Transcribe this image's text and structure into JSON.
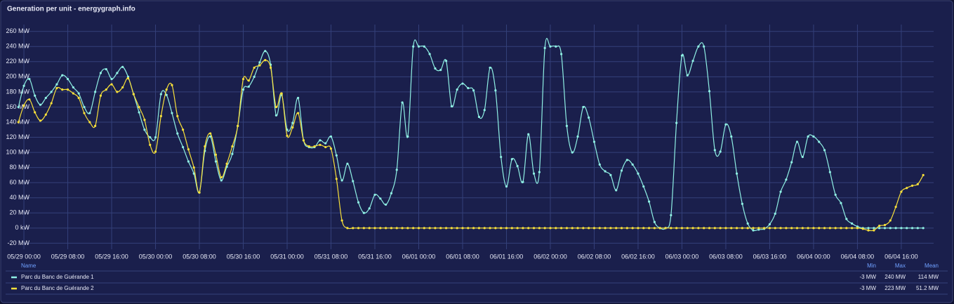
{
  "chart_data": {
    "type": "line",
    "title": "Generation per unit - energygraph.info",
    "x": [
      -1,
      0,
      1,
      2,
      3,
      4,
      5,
      6,
      7,
      8,
      9,
      10,
      11,
      12,
      13,
      14,
      15,
      16,
      17,
      18,
      19,
      20,
      21,
      22,
      23,
      24,
      25,
      26,
      27,
      28,
      29,
      30,
      31,
      32,
      33,
      34,
      35,
      36,
      37,
      38,
      39,
      40,
      41,
      42,
      43,
      44,
      45,
      46,
      47,
      48,
      49,
      50,
      51,
      52,
      53,
      54,
      55,
      56,
      57,
      58,
      59,
      60,
      61,
      62,
      63,
      64,
      65,
      66,
      67,
      68,
      69,
      70,
      71,
      72,
      73,
      74,
      75,
      76,
      77,
      78,
      79,
      80,
      81,
      82,
      83,
      84,
      85,
      86,
      87,
      88,
      89,
      90,
      91,
      92,
      93,
      94,
      95,
      96,
      97,
      98,
      99,
      100,
      101,
      102,
      103,
      104,
      105,
      106,
      107,
      108,
      109,
      110,
      111,
      112,
      113,
      114,
      115,
      116,
      117,
      118,
      119,
      120,
      121,
      122,
      123,
      124,
      125,
      126,
      127,
      128,
      129,
      130,
      131,
      132,
      133,
      134,
      135,
      136,
      137,
      138,
      139,
      140,
      141,
      142,
      143,
      144,
      145,
      146,
      147,
      148,
      149,
      150,
      151,
      152,
      153,
      154,
      155,
      156,
      157,
      158,
      159,
      160,
      161,
      162,
      163,
      164
    ],
    "xlim": [
      -1.8,
      165.9
    ],
    "xticks": [
      {
        "value": 0,
        "label": "05/29 00:00"
      },
      {
        "value": 8,
        "label": "05/29 08:00"
      },
      {
        "value": 16,
        "label": "05/29 16:00"
      },
      {
        "value": 24,
        "label": "05/30 00:00"
      },
      {
        "value": 32,
        "label": "05/30 08:00"
      },
      {
        "value": 40,
        "label": "05/30 16:00"
      },
      {
        "value": 48,
        "label": "05/31 00:00"
      },
      {
        "value": 56,
        "label": "05/31 08:00"
      },
      {
        "value": 64,
        "label": "05/31 16:00"
      },
      {
        "value": 72,
        "label": "06/01 00:00"
      },
      {
        "value": 80,
        "label": "06/01 08:00"
      },
      {
        "value": 88,
        "label": "06/01 16:00"
      },
      {
        "value": 96,
        "label": "06/02 00:00"
      },
      {
        "value": 104,
        "label": "06/02 08:00"
      },
      {
        "value": 112,
        "label": "06/02 16:00"
      },
      {
        "value": 120,
        "label": "06/03 00:00"
      },
      {
        "value": 128,
        "label": "06/03 08:00"
      },
      {
        "value": 136,
        "label": "06/03 16:00"
      },
      {
        "value": 144,
        "label": "06/04 00:00"
      },
      {
        "value": 152,
        "label": "06/04 08:00"
      },
      {
        "value": 160,
        "label": "06/04 16:00"
      }
    ],
    "ylim": [
      -28,
      269
    ],
    "yticks": [
      {
        "value": -20,
        "label": "-20 MW"
      },
      {
        "value": 0,
        "label": "0 kW"
      },
      {
        "value": 20,
        "label": "20 MW"
      },
      {
        "value": 40,
        "label": "40 MW"
      },
      {
        "value": 60,
        "label": "60 MW"
      },
      {
        "value": 80,
        "label": "80 MW"
      },
      {
        "value": 100,
        "label": "100 MW"
      },
      {
        "value": 120,
        "label": "120 MW"
      },
      {
        "value": 140,
        "label": "140 MW"
      },
      {
        "value": 160,
        "label": "160 MW"
      },
      {
        "value": 180,
        "label": "180 MW"
      },
      {
        "value": 200,
        "label": "200 MW"
      },
      {
        "value": 220,
        "label": "220 MW"
      },
      {
        "value": 240,
        "label": "240 MW"
      },
      {
        "value": 260,
        "label": "260 MW"
      }
    ],
    "grid": true,
    "series": [
      {
        "name": "Parc du Banc de Guérande 1",
        "color": "#8ff0e4",
        "values": [
          160,
          188,
          197,
          175,
          163,
          172,
          180,
          190,
          202,
          197,
          186,
          178,
          160,
          152,
          180,
          205,
          210,
          197,
          205,
          213,
          200,
          177,
          153,
          130,
          120,
          120,
          177,
          176,
          152,
          125,
          107,
          88,
          72,
          47,
          102,
          121,
          88,
          63,
          81,
          98,
          135,
          183,
          187,
          200,
          219,
          234,
          216,
          149,
          176,
          130,
          139,
          172,
          116,
          107,
          107,
          116,
          112,
          121,
          96,
          63,
          85,
          62,
          34,
          20,
          26,
          44,
          39,
          31,
          46,
          77,
          166,
          121,
          240,
          240,
          240,
          230,
          211,
          209,
          221,
          161,
          183,
          191,
          185,
          182,
          147,
          156,
          212,
          182,
          94,
          55,
          91,
          82,
          61,
          124,
          72,
          74,
          238,
          240,
          240,
          230,
          135,
          100,
          121,
          160,
          146,
          114,
          84,
          75,
          70,
          50,
          76,
          90,
          84,
          72,
          55,
          35,
          8,
          0,
          0,
          17,
          139,
          228,
          202,
          221,
          240,
          240,
          181,
          103,
          101,
          137,
          121,
          72,
          32,
          6,
          -3,
          -2,
          -1,
          5,
          19,
          48,
          64,
          87,
          114,
          94,
          121,
          121,
          114,
          103,
          74,
          44,
          33,
          12,
          6,
          2,
          0,
          0,
          0,
          0,
          0,
          0,
          0,
          0,
          0,
          0,
          0,
          0
        ]
      },
      {
        "name": "Parc du Banc de Guérande 2",
        "color": "#f8e03a",
        "values": [
          140,
          162,
          170,
          153,
          142,
          150,
          165,
          185,
          183,
          183,
          178,
          172,
          152,
          140,
          135,
          175,
          183,
          190,
          180,
          186,
          198,
          177,
          160,
          143,
          110,
          101,
          148,
          183,
          189,
          148,
          130,
          104,
          80,
          47,
          108,
          125,
          97,
          67,
          85,
          108,
          135,
          197,
          195,
          212,
          215,
          222,
          212,
          160,
          178,
          122,
          133,
          152,
          116,
          108,
          108,
          110,
          107,
          105,
          65,
          10,
          0,
          0,
          0,
          0,
          0,
          0,
          0,
          0,
          0,
          0,
          0,
          0,
          0,
          0,
          0,
          0,
          0,
          0,
          0,
          0,
          0,
          0,
          0,
          0,
          0,
          0,
          0,
          0,
          0,
          0,
          0,
          0,
          0,
          0,
          0,
          0,
          0,
          0,
          0,
          0,
          0,
          0,
          0,
          0,
          0,
          0,
          0,
          0,
          0,
          0,
          0,
          0,
          0,
          0,
          0,
          0,
          0,
          0,
          0,
          0,
          0,
          0,
          0,
          0,
          0,
          0,
          0,
          0,
          0,
          0,
          0,
          0,
          0,
          0,
          0,
          0,
          0,
          0,
          0,
          0,
          0,
          0,
          0,
          0,
          0,
          0,
          0,
          0,
          0,
          0,
          0,
          0,
          0,
          0,
          -1,
          -3,
          -3,
          3,
          4,
          10,
          28,
          48,
          53,
          56,
          58,
          70
        ]
      }
    ],
    "legend": {
      "columns": [
        "Name",
        "Min",
        "Max",
        "Mean"
      ],
      "rows": [
        [
          "-3 MW",
          "240 MW",
          "114 MW"
        ],
        [
          "-3 MW",
          "223 MW",
          "51.2 MW"
        ]
      ]
    }
  }
}
